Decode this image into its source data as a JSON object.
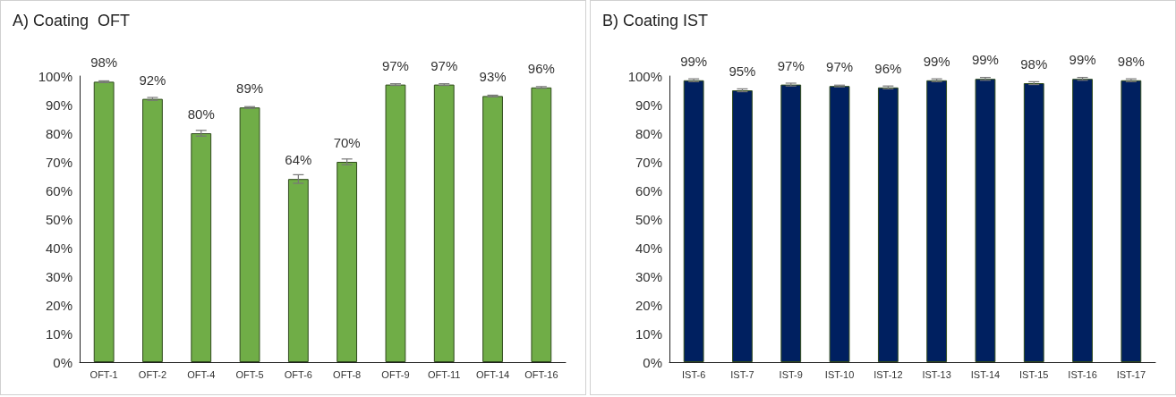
{
  "chart_data": [
    {
      "type": "bar",
      "title": "A) Coating  OFT",
      "categories": [
        "OFT-1",
        "OFT-2",
        "OFT-4",
        "OFT-5",
        "OFT-6",
        "OFT-8",
        "OFT-9",
        "OFT-11",
        "OFT-14",
        "OFT-16"
      ],
      "series": [
        {
          "color": "#70ad47",
          "values": [
            98,
            92,
            80,
            89,
            64,
            70,
            97,
            97,
            93,
            96
          ],
          "errors": [
            0.3,
            0.5,
            1,
            0.3,
            1.5,
            1,
            0.3,
            0.3,
            0.3,
            0.3
          ],
          "value_labels": [
            "98%",
            "92%",
            "80%",
            "89%",
            "64%",
            "70%",
            "97%",
            "97%",
            "93%",
            "96%"
          ]
        }
      ],
      "ylim": [
        0,
        100
      ],
      "yticks": [
        {
          "value": 0,
          "label": "0%"
        },
        {
          "value": 10,
          "label": "10%"
        },
        {
          "value": 20,
          "label": "20%"
        },
        {
          "value": 30,
          "label": "30%"
        },
        {
          "value": 40,
          "label": "40%"
        },
        {
          "value": 50,
          "label": "50%"
        },
        {
          "value": 60,
          "label": "60%"
        },
        {
          "value": 70,
          "label": "70%"
        },
        {
          "value": 80,
          "label": "80%"
        },
        {
          "value": 90,
          "label": "90%"
        },
        {
          "value": 100,
          "label": "100%"
        }
      ],
      "grid": false
    },
    {
      "type": "bar",
      "title": "B) Coating IST",
      "categories": [
        "IST-6",
        "IST-7",
        "IST-9",
        "IST-10",
        "IST-12",
        "IST-13",
        "IST-14",
        "IST-15",
        "IST-16",
        "IST-17"
      ],
      "series": [
        {
          "color": "#002060",
          "values": [
            98.5,
            95,
            97,
            96.5,
            96,
            98.5,
            99,
            97.5,
            99,
            98.5
          ],
          "errors": [
            0.5,
            0.5,
            0.5,
            0.3,
            0.5,
            0.5,
            0.5,
            0.5,
            0.5,
            0.5
          ],
          "value_labels": [
            "99%",
            "95%",
            "97%",
            "97%",
            "96%",
            "99%",
            "99%",
            "98%",
            "99%",
            "98%"
          ]
        }
      ],
      "ylim": [
        0,
        100
      ],
      "yticks": [
        {
          "value": 0,
          "label": "0%"
        },
        {
          "value": 10,
          "label": "10%"
        },
        {
          "value": 20,
          "label": "20%"
        },
        {
          "value": 30,
          "label": "30%"
        },
        {
          "value": 40,
          "label": "40%"
        },
        {
          "value": 50,
          "label": "50%"
        },
        {
          "value": 60,
          "label": "60%"
        },
        {
          "value": 70,
          "label": "70%"
        },
        {
          "value": 80,
          "label": "80%"
        },
        {
          "value": 90,
          "label": "90%"
        },
        {
          "value": 100,
          "label": "100%"
        }
      ],
      "grid": false
    }
  ]
}
